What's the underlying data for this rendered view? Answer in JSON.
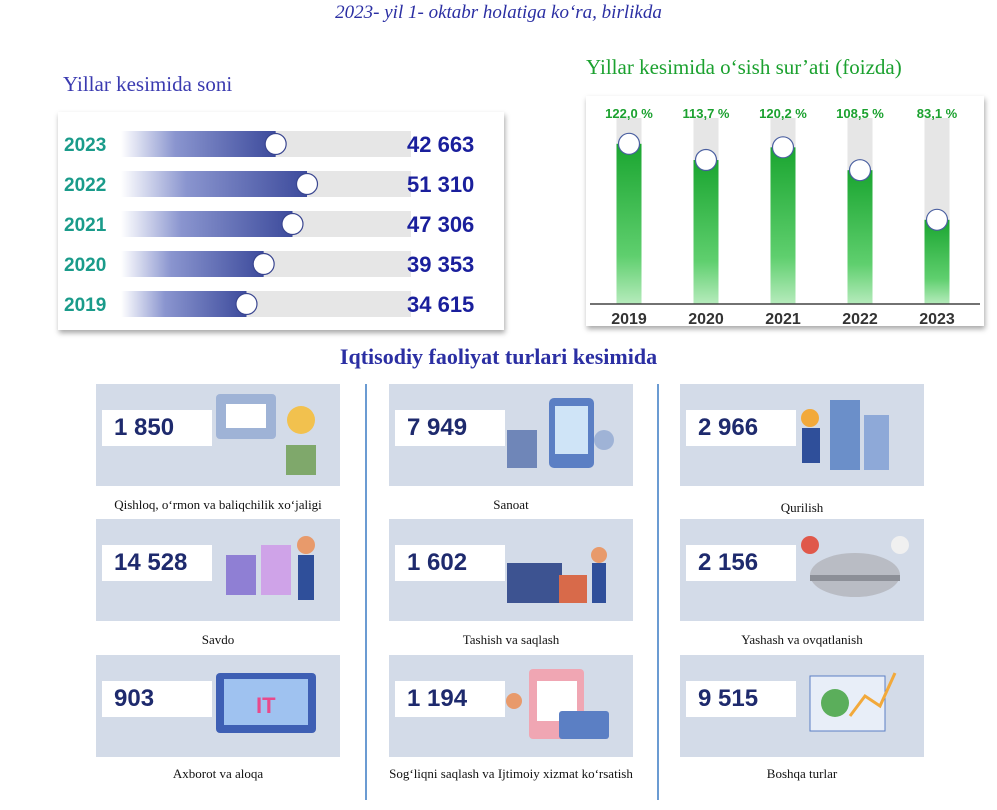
{
  "header": {
    "subtitle": "2023- yil 1- oktabr holatiga ko‘ra, birlikda"
  },
  "colors": {
    "title_blue": "#2b2fa3",
    "green": "#1ba12f",
    "bar_blue": "#3d4b9c",
    "track": "#e6e6e6",
    "year_teal": "#1a9b8a"
  },
  "chart_data": [
    {
      "type": "bar",
      "orientation": "horizontal",
      "title": "Yillar kesimida soni",
      "categories": [
        "2023",
        "2022",
        "2021",
        "2020",
        "2019"
      ],
      "values": [
        42663,
        51310,
        47306,
        39353,
        34615
      ],
      "value_labels": [
        "42 663",
        "51 310",
        "47 306",
        "39 353",
        "34 615"
      ],
      "xlim": [
        0,
        80000
      ]
    },
    {
      "type": "bar",
      "title": "Yillar kesimida o‘sish sur’ati (foizda)",
      "categories": [
        "2019",
        "2020",
        "2021",
        "2022",
        "2023"
      ],
      "values": [
        122.0,
        113.7,
        120.2,
        108.5,
        83.1
      ],
      "value_labels": [
        "122,0 %",
        "113,7 %",
        "120,2 %",
        "108,5 %",
        "83,1 %"
      ],
      "ylim": [
        40,
        126
      ]
    }
  ],
  "activities": {
    "title": "Iqtisodiy faoliyat turlari kesimida",
    "items": [
      {
        "value": "1 850",
        "label": "Qishloq, o‘rmon va baliqchilik xo‘jaligi"
      },
      {
        "value": "7 949",
        "label": "Sanoat"
      },
      {
        "value": "2 966",
        "label": "Qurilish"
      },
      {
        "value": "14 528",
        "label": "Savdo"
      },
      {
        "value": "1 602",
        "label": "Tashish va saqlash"
      },
      {
        "value": "2 156",
        "label": "Yashash va ovqatlanish"
      },
      {
        "value": "903",
        "label": "Axborot va aloqa"
      },
      {
        "value": "1 194",
        "label": "Sog‘liqni saqlash va Ijtimoiy xizmat ko‘rsatish"
      },
      {
        "value": "9 515",
        "label": "Boshqa turlar"
      }
    ]
  }
}
